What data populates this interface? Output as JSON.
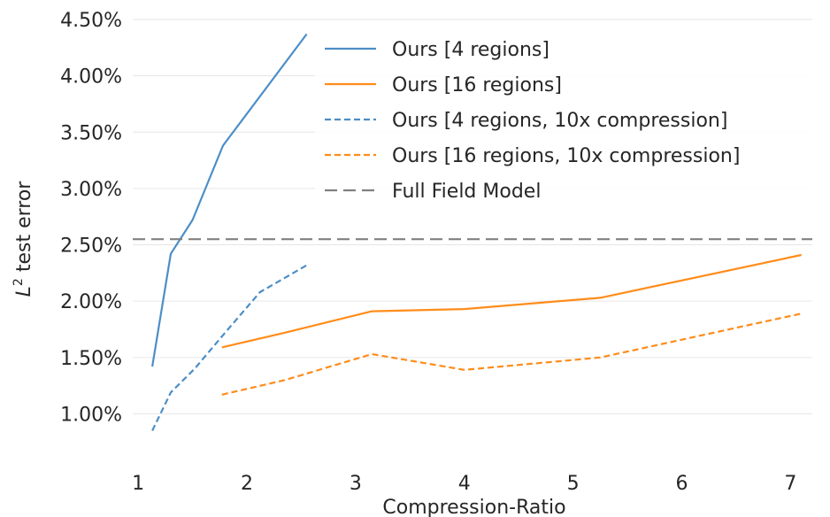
{
  "chart_data": {
    "type": "line",
    "xlabel": "Compression-Ratio",
    "ylabel_prefix": "L",
    "ylabel_sup": "2",
    "ylabel_suffix": " test error",
    "xlim": [
      0.95,
      7.2
    ],
    "ylim": [
      0.0065,
      0.045
    ],
    "x_ticks": [
      {
        "value": 1,
        "label": "1"
      },
      {
        "value": 2,
        "label": "2"
      },
      {
        "value": 3,
        "label": "3"
      },
      {
        "value": 4,
        "label": "4"
      },
      {
        "value": 5,
        "label": "5"
      },
      {
        "value": 6,
        "label": "6"
      },
      {
        "value": 7,
        "label": "7"
      }
    ],
    "y_ticks": [
      {
        "value": 0.01,
        "label": "1.00%"
      },
      {
        "value": 0.015,
        "label": "1.50%"
      },
      {
        "value": 0.02,
        "label": "2.00%"
      },
      {
        "value": 0.025,
        "label": "2.50%"
      },
      {
        "value": 0.03,
        "label": "3.00%"
      },
      {
        "value": 0.035,
        "label": "3.50%"
      },
      {
        "value": 0.04,
        "label": "4.00%"
      },
      {
        "value": 0.045,
        "label": "4.50%"
      }
    ],
    "grid": "horizontal",
    "legend_position": "top-right",
    "series": [
      {
        "name": "Ours [4 regions]",
        "color": "#4c8ec6",
        "dash": "solid",
        "points": [
          [
            1.13,
            0.0142
          ],
          [
            1.3,
            0.0242
          ],
          [
            1.5,
            0.0272
          ],
          [
            1.78,
            0.0338
          ],
          [
            2.55,
            0.0437
          ]
        ]
      },
      {
        "name": "Ours [16 regions]",
        "color": "#ff8c1a",
        "dash": "solid",
        "points": [
          [
            1.77,
            0.0159
          ],
          [
            2.35,
            0.0172
          ],
          [
            3.15,
            0.0191
          ],
          [
            4.0,
            0.0193
          ],
          [
            5.25,
            0.0203
          ],
          [
            7.1,
            0.0241
          ]
        ]
      },
      {
        "name": "Ours [4 regions, 10x compression]",
        "color": "#4c8ec6",
        "dash": "dashed",
        "points": [
          [
            1.13,
            0.0085
          ],
          [
            1.3,
            0.0119
          ],
          [
            1.52,
            0.014
          ],
          [
            1.8,
            0.0172
          ],
          [
            2.12,
            0.0208
          ],
          [
            2.57,
            0.0233
          ]
        ]
      },
      {
        "name": "Ours [16 regions, 10x compression]",
        "color": "#ff8c1a",
        "dash": "dashed",
        "points": [
          [
            1.77,
            0.0117
          ],
          [
            2.35,
            0.013
          ],
          [
            3.15,
            0.0153
          ],
          [
            4.0,
            0.0139
          ],
          [
            5.25,
            0.015
          ],
          [
            7.1,
            0.0189
          ]
        ]
      },
      {
        "name": "Full Field Model",
        "color": "#808080",
        "dash": "longdash",
        "horizontal": true,
        "value": 0.0255
      }
    ]
  }
}
